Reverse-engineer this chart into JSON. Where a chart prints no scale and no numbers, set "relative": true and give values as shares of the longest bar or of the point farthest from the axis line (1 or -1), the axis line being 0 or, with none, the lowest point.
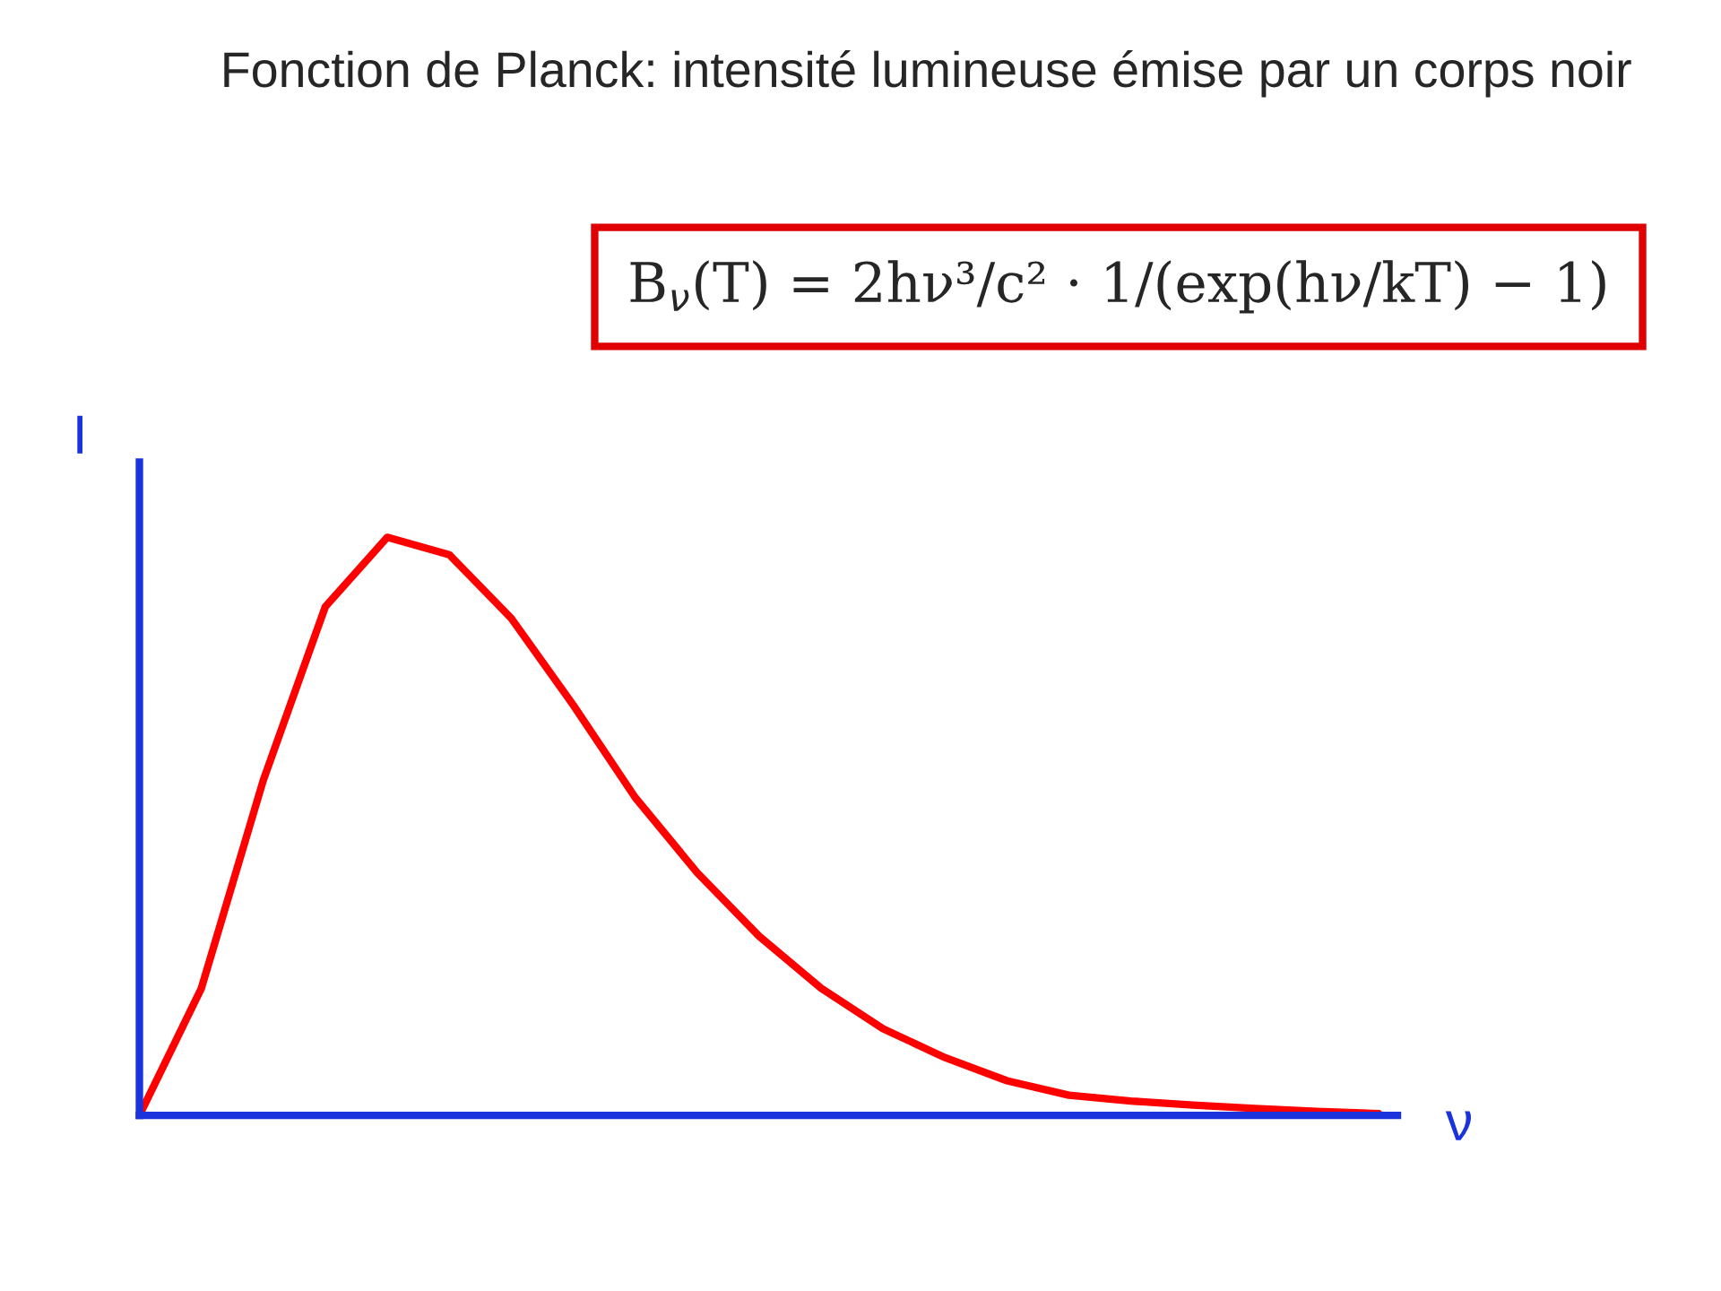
{
  "chart_data": {
    "type": "line",
    "relative": true,
    "title": "Fonction de Planck: intensité lumineuse émise par un corps noir",
    "xlabel": "ν",
    "ylabel": "I",
    "annotations": [
      "B$_{ν}$(T) = 2hν³/c² · 1/(exp(hν/kT) − 1)"
    ],
    "categories": [
      null,
      null,
      null,
      null,
      null,
      null,
      null,
      null,
      null,
      null,
      null,
      null,
      null,
      null,
      null,
      null,
      null,
      null,
      null,
      null,
      null
    ],
    "series": [
      {
        "color": "#ff0000",
        "values": [
          0,
          0.22,
          0.58,
          0.88,
          1.0,
          0.97,
          0.86,
          0.71,
          0.55,
          0.42,
          0.31,
          0.22,
          0.15,
          0.1,
          0.06,
          0.035,
          0.025,
          0.018,
          0.012,
          0.007,
          0.003
        ]
      }
    ],
    "legend": false,
    "marker": "none",
    "line_style": "solid"
  }
}
